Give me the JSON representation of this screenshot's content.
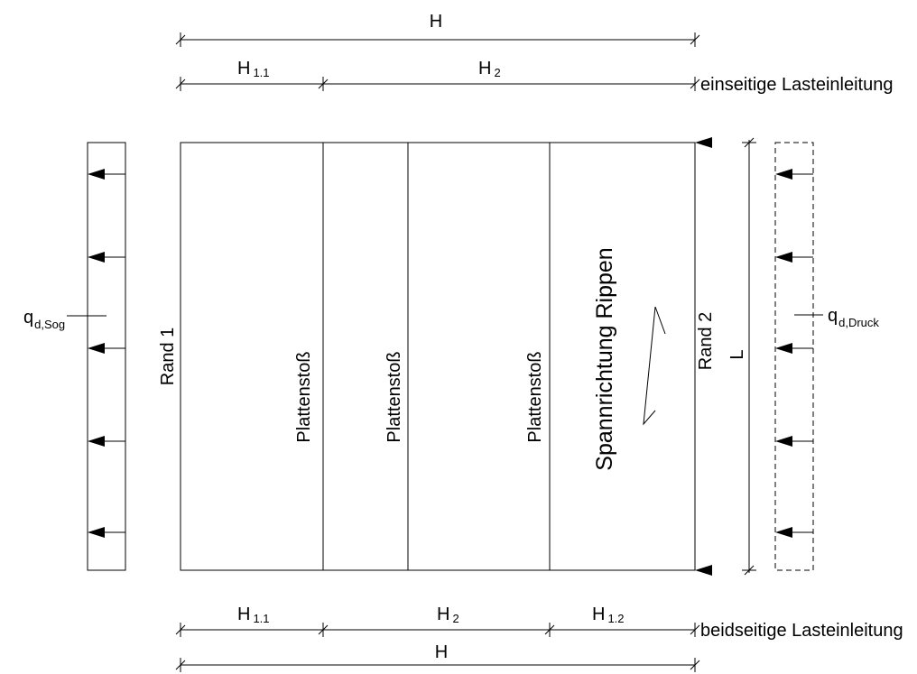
{
  "top_dims": {
    "overall": {
      "symbol": "H"
    },
    "segment_1": {
      "symbol": "H",
      "sub": "1.1"
    },
    "segment_2": {
      "symbol": "H",
      "sub": "2"
    },
    "caption": "einseitige Lasteinleitung"
  },
  "bottom_dims": {
    "segment_1": {
      "symbol": "H",
      "sub": "1.1"
    },
    "segment_2": {
      "symbol": "H",
      "sub": "2"
    },
    "segment_3": {
      "symbol": "H",
      "sub": "1.2"
    },
    "overall": {
      "symbol": "H"
    },
    "caption": "beidseitige Lasteinleitung"
  },
  "panel": {
    "edge_left": "Rand 1",
    "edge_right": "Rand 2",
    "joints": [
      "Plattenstoß",
      "Plattenstoß",
      "Plattenstoß"
    ],
    "span_direction": "Spannrichtung Rippen",
    "length": "L"
  },
  "loads": {
    "suction": {
      "symbol": "q",
      "sub": "d,Sog"
    },
    "pressure": {
      "symbol": "q",
      "sub": "d,Druck"
    }
  }
}
